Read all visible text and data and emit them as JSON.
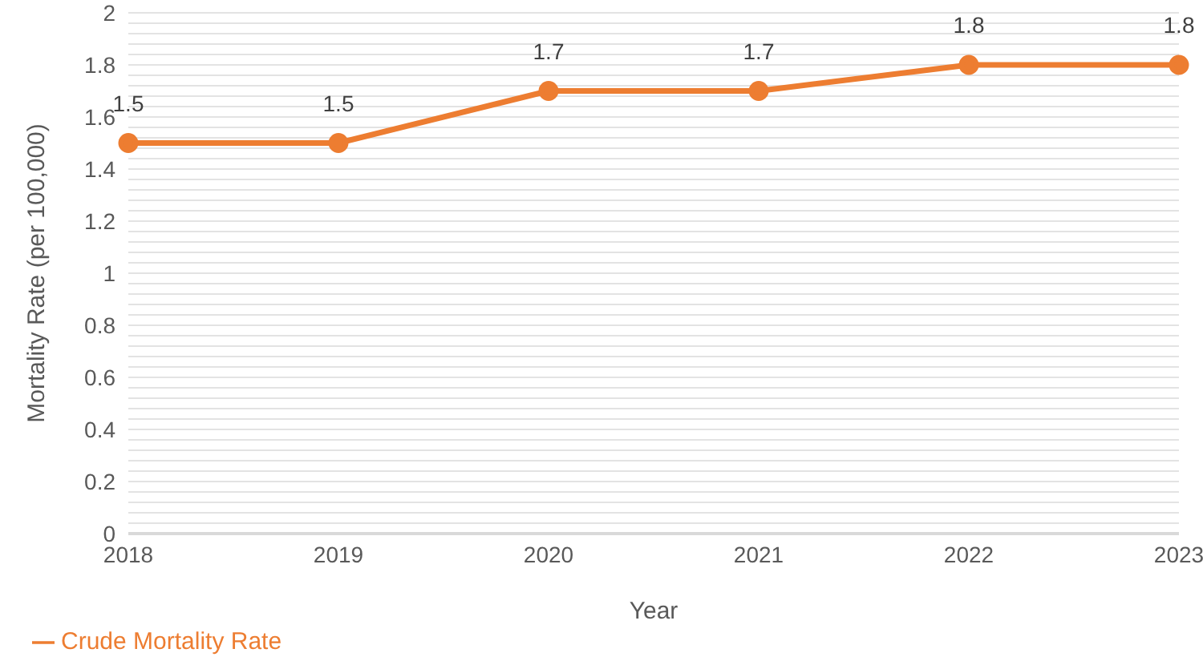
{
  "chart_data": {
    "type": "line",
    "xlabel": "Year",
    "ylabel": "Mortality Rate (per 100,000)",
    "categories": [
      "2018",
      "2019",
      "2020",
      "2021",
      "2022",
      "2023"
    ],
    "series": [
      {
        "name": "Crude Mortality Rate",
        "color": "#ed7d31",
        "values": [
          1.5,
          1.5,
          1.7,
          1.7,
          1.8,
          1.8
        ]
      }
    ],
    "ylim": [
      0,
      2
    ],
    "yticks": [
      0,
      {
        "value": 0.04,
        "label": null
      },
      {
        "value": 0.08,
        "label": null
      },
      {
        "value": 0.12,
        "label": null
      },
      {
        "value": 0.16,
        "label": null
      },
      0.2,
      {
        "value": 0.24,
        "label": null
      },
      {
        "value": 0.28,
        "label": null
      },
      {
        "value": 0.32,
        "label": null
      },
      {
        "value": 0.36,
        "label": null
      },
      0.4,
      {
        "value": 0.44,
        "label": null
      },
      {
        "value": 0.48,
        "label": null
      },
      {
        "value": 0.52,
        "label": null
      },
      {
        "value": 0.56,
        "label": null
      },
      0.6,
      {
        "value": 0.64,
        "label": null
      },
      {
        "value": 0.68,
        "label": null
      },
      {
        "value": 0.72,
        "label": null
      },
      {
        "value": 0.76,
        "label": null
      },
      0.8,
      {
        "value": 0.84,
        "label": null
      },
      {
        "value": 0.88,
        "label": null
      },
      {
        "value": 0.92,
        "label": null
      },
      {
        "value": 0.96,
        "label": null
      },
      1,
      {
        "value": 1.04,
        "label": null
      },
      {
        "value": 1.08,
        "label": null
      },
      {
        "value": 1.12,
        "label": null
      },
      {
        "value": 1.16,
        "label": null
      },
      1.2,
      {
        "value": 1.24,
        "label": null
      },
      {
        "value": 1.28,
        "label": null
      },
      {
        "value": 1.32,
        "label": null
      },
      {
        "value": 1.36,
        "label": null
      },
      1.4,
      {
        "value": 1.44,
        "label": null
      },
      {
        "value": 1.48,
        "label": null
      },
      {
        "value": 1.52,
        "label": null
      },
      {
        "value": 1.56,
        "label": null
      },
      1.6,
      {
        "value": 1.64,
        "label": null
      },
      {
        "value": 1.68,
        "label": null
      },
      {
        "value": 1.72,
        "label": null
      },
      {
        "value": 1.76,
        "label": null
      },
      1.8,
      {
        "value": 1.84,
        "label": null
      },
      {
        "value": 1.88,
        "label": null
      },
      {
        "value": 1.92,
        "label": null
      },
      {
        "value": 1.96,
        "label": null
      },
      2
    ],
    "grid": "y",
    "legend": "bottom left",
    "marker": "circle",
    "line_style": "solid",
    "data_labels": true
  }
}
